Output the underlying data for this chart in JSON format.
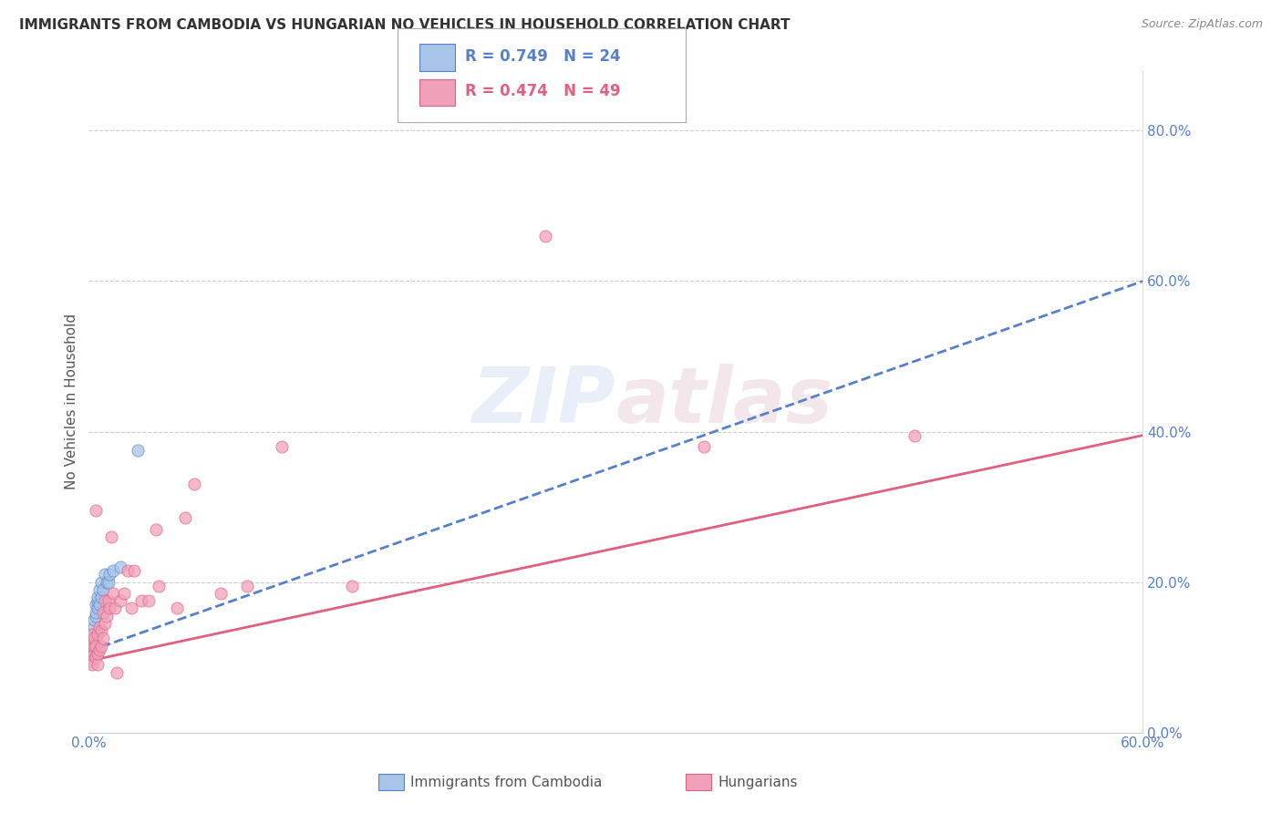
{
  "title": "IMMIGRANTS FROM CAMBODIA VS HUNGARIAN NO VEHICLES IN HOUSEHOLD CORRELATION CHART",
  "source": "Source: ZipAtlas.com",
  "ylabel": "No Vehicles in Household",
  "ytick_labels": [
    "0.0%",
    "20.0%",
    "40.0%",
    "60.0%",
    "80.0%"
  ],
  "ytick_values": [
    0.0,
    0.2,
    0.4,
    0.6,
    0.8
  ],
  "xlim": [
    0.0,
    0.6
  ],
  "ylim": [
    0.0,
    0.88
  ],
  "legend1_R": "0.749",
  "legend1_N": "24",
  "legend2_R": "0.474",
  "legend2_N": "49",
  "color_cambodia": "#a8c4e8",
  "color_hungarian": "#f0a0b8",
  "trendline_cambodia_color": "#5580cc",
  "trendline_hungarian_color": "#e06080",
  "background_color": "#ffffff",
  "grid_color": "#cccccc",
  "title_color": "#333333",
  "source_color": "#888888",
  "label_color_blue": "#5580cc",
  "label_color_pink": "#e06080",
  "watermark": "ZIPatlas",
  "cambodia_x": [
    0.001,
    0.001,
    0.002,
    0.002,
    0.003,
    0.003,
    0.004,
    0.004,
    0.004,
    0.005,
    0.005,
    0.005,
    0.006,
    0.006,
    0.007,
    0.007,
    0.008,
    0.009,
    0.01,
    0.011,
    0.012,
    0.014,
    0.018,
    0.028
  ],
  "cambodia_y": [
    0.115,
    0.105,
    0.12,
    0.13,
    0.14,
    0.15,
    0.155,
    0.16,
    0.17,
    0.165,
    0.175,
    0.18,
    0.17,
    0.19,
    0.18,
    0.2,
    0.19,
    0.21,
    0.2,
    0.2,
    0.21,
    0.215,
    0.22,
    0.375
  ],
  "hungarian_x": [
    0.001,
    0.001,
    0.001,
    0.002,
    0.002,
    0.002,
    0.003,
    0.003,
    0.003,
    0.004,
    0.004,
    0.004,
    0.005,
    0.005,
    0.005,
    0.006,
    0.006,
    0.007,
    0.007,
    0.008,
    0.008,
    0.009,
    0.009,
    0.01,
    0.011,
    0.012,
    0.013,
    0.014,
    0.015,
    0.016,
    0.018,
    0.02,
    0.022,
    0.024,
    0.026,
    0.03,
    0.034,
    0.038,
    0.04,
    0.05,
    0.055,
    0.06,
    0.075,
    0.09,
    0.11,
    0.15,
    0.26,
    0.35,
    0.47
  ],
  "hungarian_y": [
    0.115,
    0.105,
    0.095,
    0.12,
    0.13,
    0.09,
    0.105,
    0.115,
    0.125,
    0.1,
    0.115,
    0.295,
    0.09,
    0.105,
    0.13,
    0.11,
    0.14,
    0.115,
    0.135,
    0.125,
    0.16,
    0.145,
    0.175,
    0.155,
    0.175,
    0.165,
    0.26,
    0.185,
    0.165,
    0.08,
    0.175,
    0.185,
    0.215,
    0.165,
    0.215,
    0.175,
    0.175,
    0.27,
    0.195,
    0.165,
    0.285,
    0.33,
    0.185,
    0.195,
    0.38,
    0.195,
    0.66,
    0.38,
    0.395
  ],
  "cam_trend_x0": 0.0,
  "cam_trend_y0": 0.108,
  "cam_trend_x1": 0.6,
  "cam_trend_y1": 0.6,
  "hun_trend_x0": 0.0,
  "hun_trend_y0": 0.095,
  "hun_trend_x1": 0.6,
  "hun_trend_y1": 0.395
}
